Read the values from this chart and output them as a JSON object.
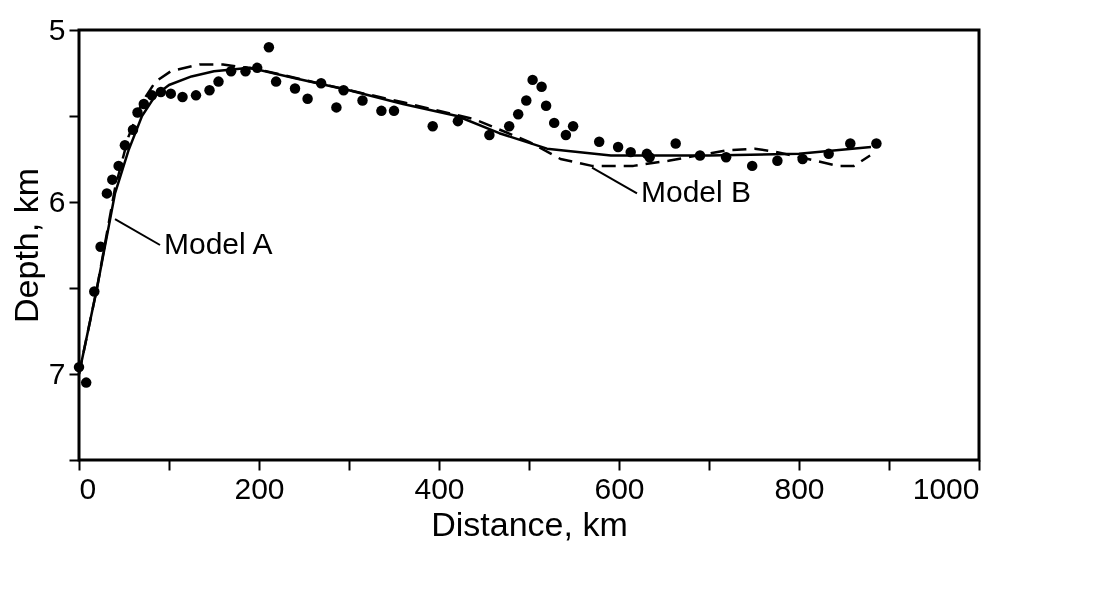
{
  "chart_data": {
    "type": "scatter",
    "xlabel": "Distance, km",
    "ylabel": "Depth, km",
    "xlim": [
      0,
      1000
    ],
    "ylim": [
      7.5,
      5
    ],
    "xticks": [
      0,
      {
        "value": 100,
        "label": null
      },
      200,
      {
        "value": 300,
        "label": null
      },
      400,
      {
        "value": 500,
        "label": null
      },
      600,
      {
        "value": 700,
        "label": null
      },
      800,
      {
        "value": 900,
        "label": null
      },
      1000
    ],
    "yticks": [
      5,
      {
        "value": 5.5,
        "label": null
      },
      6,
      {
        "value": 6.5,
        "label": null
      },
      7,
      {
        "value": 7.5,
        "label": null
      }
    ],
    "grid": false,
    "annotations": [
      {
        "text": "Model A",
        "x": 40,
        "y": 6.1
      },
      {
        "text": "Model B",
        "x": 570,
        "y": 5.8
      }
    ],
    "series": [
      {
        "type": "scatter",
        "color": "#000000",
        "marker": "circle",
        "x": [
          0,
          8,
          17,
          24,
          31,
          37,
          44,
          51,
          60,
          65,
          72,
          81,
          91,
          102,
          115,
          130,
          145,
          155,
          169,
          185,
          198,
          211,
          219,
          240,
          254,
          269,
          286,
          294,
          315,
          336,
          350,
          393,
          421,
          456,
          478,
          488,
          497,
          504,
          514,
          519,
          528,
          541,
          549,
          578,
          599,
          613,
          631,
          634,
          663,
          690,
          719,
          748,
          776,
          804,
          833,
          857,
          886
        ],
        "values": [
          6.96,
          7.05,
          6.52,
          6.26,
          5.95,
          5.87,
          5.79,
          5.67,
          5.58,
          5.48,
          5.43,
          5.38,
          5.36,
          5.37,
          5.39,
          5.38,
          5.35,
          5.3,
          5.24,
          5.24,
          5.22,
          5.1,
          5.3,
          5.34,
          5.4,
          5.31,
          5.45,
          5.35,
          5.41,
          5.47,
          5.47,
          5.56,
          5.53,
          5.61,
          5.56,
          5.49,
          5.41,
          5.29,
          5.33,
          5.44,
          5.54,
          5.61,
          5.56,
          5.65,
          5.68,
          5.71,
          5.72,
          5.74,
          5.66,
          5.73,
          5.74,
          5.79,
          5.76,
          5.75,
          5.72,
          5.66,
          5.66
        ]
      },
      {
        "type": "line",
        "color": "#000000",
        "line_style": "solid",
        "marker": "none",
        "x": [
          0,
          20,
          40,
          55,
          70,
          85,
          100,
          125,
          150,
          190,
          240,
          300,
          360,
          420,
          467,
          520,
          591,
          634,
          700,
          800,
          880
        ],
        "values": [
          7.0,
          6.5,
          5.95,
          5.7,
          5.5,
          5.38,
          5.32,
          5.27,
          5.24,
          5.22,
          5.28,
          5.35,
          5.43,
          5.5,
          5.6,
          5.69,
          5.73,
          5.73,
          5.73,
          5.72,
          5.68
        ]
      },
      {
        "type": "line",
        "color": "#000000",
        "line_style": "dashed",
        "marker": "none",
        "x": [
          0,
          20,
          40,
          55,
          70,
          85,
          102,
          134,
          160,
          200,
          250,
          300,
          360,
          440,
          500,
          535,
          570,
          616,
          655,
          719,
          751,
          776,
          810,
          843,
          861,
          879
        ],
        "values": [
          7.0,
          6.5,
          5.92,
          5.62,
          5.42,
          5.3,
          5.24,
          5.2,
          5.2,
          5.23,
          5.29,
          5.35,
          5.42,
          5.52,
          5.65,
          5.75,
          5.79,
          5.79,
          5.76,
          5.7,
          5.69,
          5.71,
          5.75,
          5.79,
          5.79,
          5.73
        ]
      }
    ]
  }
}
